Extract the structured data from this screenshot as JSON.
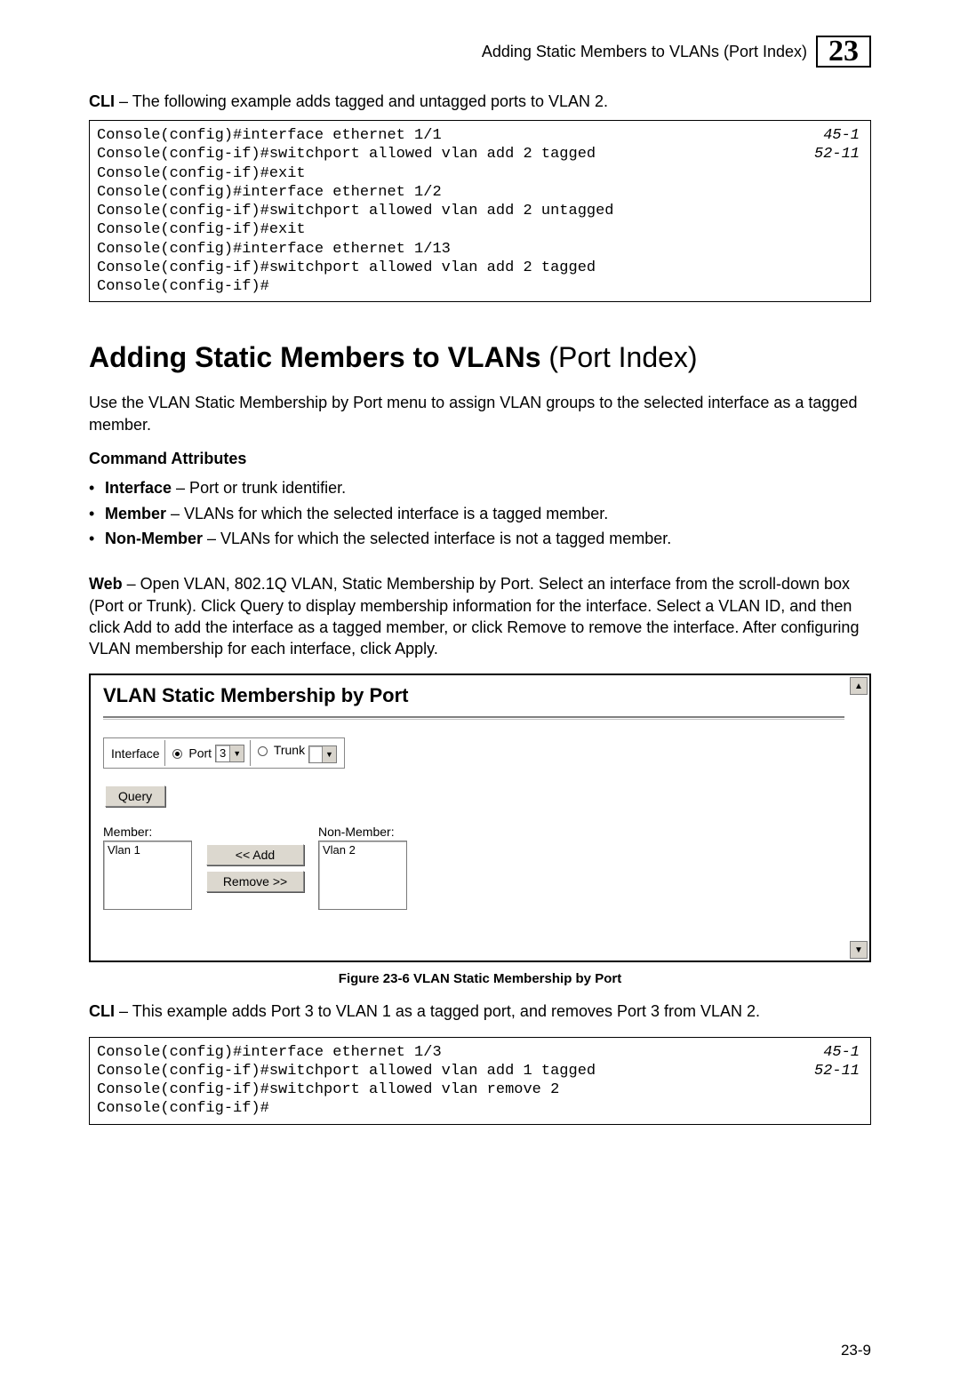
{
  "header": {
    "breadcrumb": "Adding Static Members to VLANs (Port Index)",
    "chapter": "23"
  },
  "intro_cli": {
    "bold": "CLI",
    "rest": " – The following example adds tagged and untagged ports to VLAN 2."
  },
  "codebox1": {
    "lines": [
      {
        "text": "Console(config)#interface ethernet 1/1",
        "ref": "45-1"
      },
      {
        "text": "Console(config-if)#switchport allowed vlan add 2 tagged",
        "ref": "52-11"
      },
      {
        "text": "Console(config-if)#exit",
        "ref": ""
      },
      {
        "text": "Console(config)#interface ethernet 1/2",
        "ref": ""
      },
      {
        "text": "Console(config-if)#switchport allowed vlan add 2 untagged",
        "ref": ""
      },
      {
        "text": "Console(config-if)#exit",
        "ref": ""
      },
      {
        "text": "Console(config)#interface ethernet 1/13",
        "ref": ""
      },
      {
        "text": "Console(config-if)#switchport allowed vlan add 2 tagged",
        "ref": ""
      },
      {
        "text": "Console(config-if)#",
        "ref": ""
      }
    ]
  },
  "section_heading": {
    "bold": "Adding Static Members to VLANs",
    "paren": " (Port Index)"
  },
  "para_intro": "Use the VLAN Static Membership by Port menu to assign VLAN groups to the selected interface as a tagged member.",
  "cmd_attr_heading": "Command Attributes",
  "attrs": [
    {
      "name": "Interface",
      "desc": " – Port or trunk identifier."
    },
    {
      "name": "Member",
      "desc": " – VLANs for which the selected interface is a tagged member."
    },
    {
      "name": "Non-Member",
      "desc": " – VLANs for which the selected interface is not a tagged member."
    }
  ],
  "web_para": {
    "bold": "Web",
    "rest": " – Open VLAN, 802.1Q VLAN, Static Membership by Port. Select an interface from the scroll-down box (Port or Trunk). Click Query to display membership information for the interface. Select a VLAN ID, and then click Add to add the interface as a tagged member, or click Remove to remove the interface. After configuring VLAN membership for each interface, click Apply."
  },
  "panel": {
    "title": "VLAN Static Membership by Port",
    "interface_label": "Interface",
    "port_label": "Port",
    "port_value": "3",
    "trunk_label": "Trunk",
    "trunk_value": "",
    "query_btn": "Query",
    "member_label": "Member:",
    "nonmember_label": "Non-Member:",
    "member_item": "Vlan 1",
    "nonmember_item": "Vlan 2",
    "add_btn": "<< Add",
    "remove_btn": "Remove >>",
    "scroll_up": "▲",
    "scroll_down": "▼",
    "dd_arrow": "▼"
  },
  "figure_caption": "Figure 23-6  VLAN Static Membership by Port",
  "cli2": {
    "bold": "CLI",
    "rest": " – This example adds Port 3 to VLAN 1 as a tagged port, and removes Port 3 from VLAN 2."
  },
  "codebox2": {
    "lines": [
      {
        "text": "Console(config)#interface ethernet 1/3",
        "ref": "45-1"
      },
      {
        "text": "Console(config-if)#switchport allowed vlan add 1 tagged",
        "ref": "52-11"
      },
      {
        "text": "Console(config-if)#switchport allowed vlan remove 2",
        "ref": ""
      },
      {
        "text": "Console(config-if)#",
        "ref": ""
      }
    ]
  },
  "page_number": "23-9"
}
